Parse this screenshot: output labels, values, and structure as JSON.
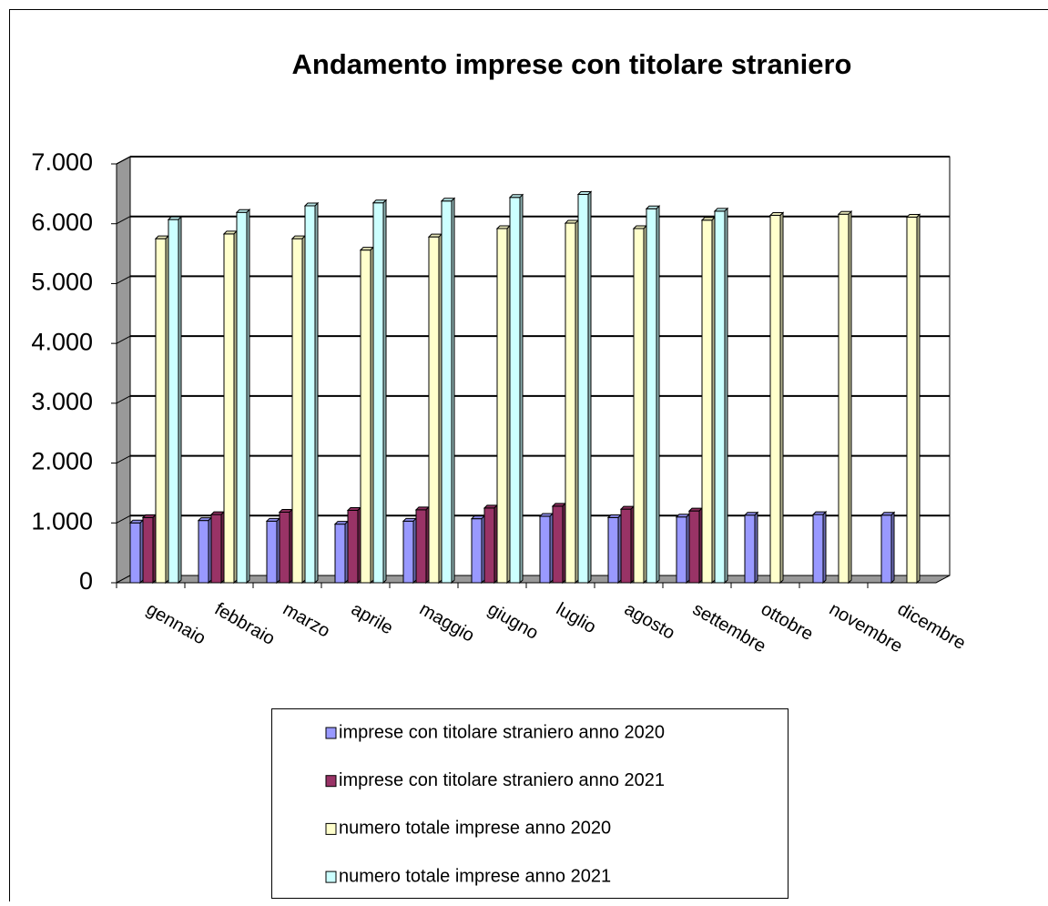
{
  "chart_data": {
    "type": "bar3d",
    "title": "Andamento imprese con titolare straniero",
    "categories": [
      "gennaio",
      "febbraio",
      "marzo",
      "aprile",
      "maggio",
      "giugno",
      "luglio",
      "agosto",
      "settembre",
      "ottobre",
      "novembre",
      "dicembre"
    ],
    "series": [
      {
        "name": "imprese con titolare straniero anno 2020",
        "color": "#9999ff",
        "values": [
          1000,
          1040,
          1030,
          980,
          1030,
          1070,
          1110,
          1090,
          1100,
          1130,
          1140,
          1130
        ]
      },
      {
        "name": "imprese con titolare straniero anno 2021",
        "color": "#993366",
        "values": [
          1090,
          1140,
          1180,
          1210,
          1220,
          1250,
          1280,
          1230,
          1200,
          null,
          null,
          null
        ]
      },
      {
        "name": "numero totale imprese anno 2020",
        "color": "#ffffcc",
        "values": [
          5750,
          5830,
          5750,
          5560,
          5780,
          5920,
          6010,
          5920,
          6060,
          6140,
          6160,
          6110
        ]
      },
      {
        "name": "numero totale imprese anno 2021",
        "color": "#ccffff",
        "values": [
          6070,
          6190,
          6300,
          6350,
          6380,
          6440,
          6490,
          6250,
          6210,
          null,
          null,
          null
        ]
      }
    ],
    "ylim": [
      0,
      7000
    ],
    "yticks": [
      0,
      {
        "value": 1000,
        "label": "1.000"
      },
      {
        "value": 2000,
        "label": "2.000"
      },
      {
        "value": 3000,
        "label": "3.000"
      },
      {
        "value": 4000,
        "label": "4.000"
      },
      {
        "value": 5000,
        "label": "5.000"
      },
      {
        "value": 6000,
        "label": "6.000"
      },
      {
        "value": 7000,
        "label": "7.000"
      }
    ],
    "grid": true
  }
}
